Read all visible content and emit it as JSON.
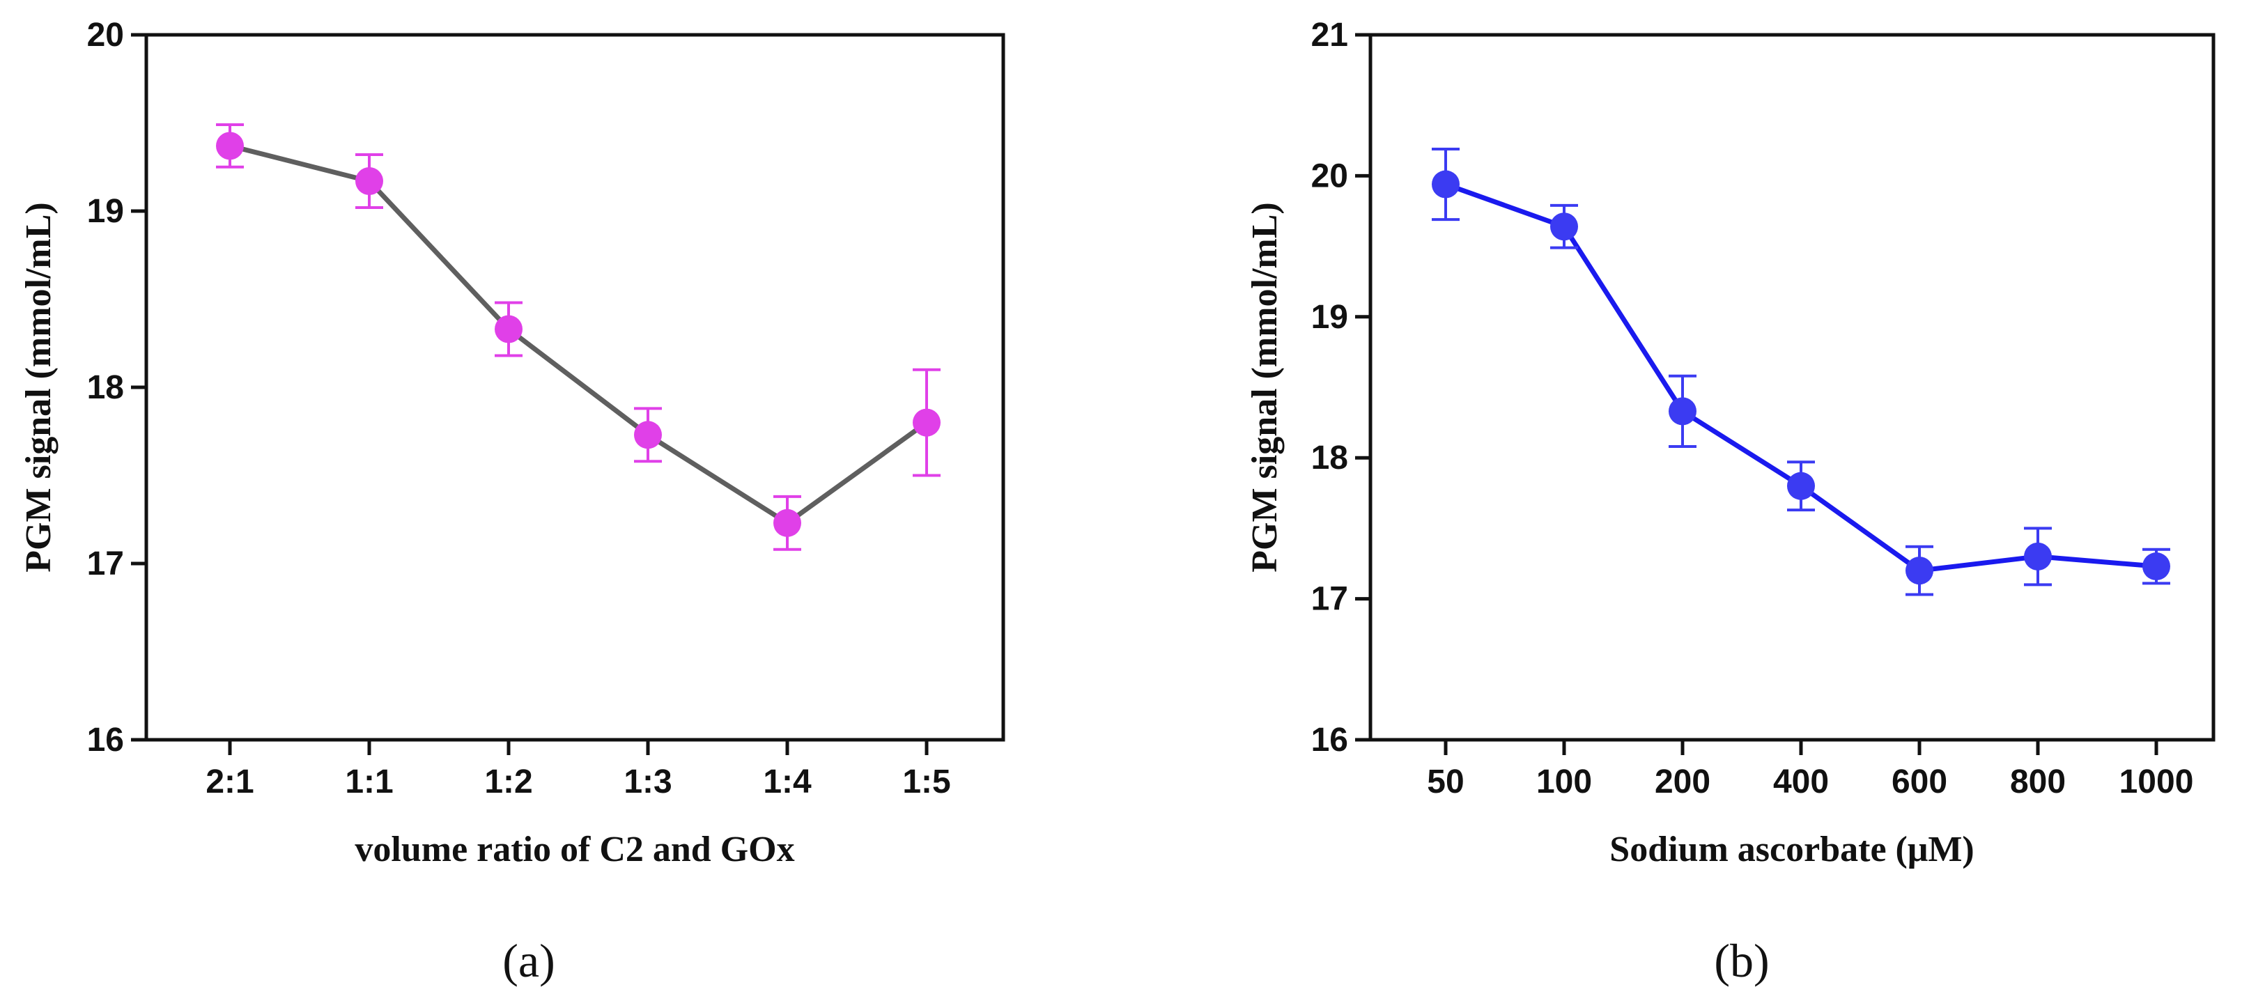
{
  "chart_data": [
    {
      "type": "line",
      "panel_label": "(a)",
      "categories": [
        "2:1",
        "1:1",
        "1:2",
        "1:3",
        "1:4",
        "1:5"
      ],
      "values": [
        19.37,
        19.17,
        18.33,
        17.73,
        17.23,
        17.8
      ],
      "errors": [
        0.12,
        0.15,
        0.15,
        0.15,
        0.15,
        0.3
      ],
      "xlabel": "volume ratio of C2 and GOx",
      "ylabel": "PGM signal (mmol/mL)",
      "ylim": [
        16,
        20
      ],
      "yticks": [
        "16",
        "17",
        "18",
        "19",
        "20"
      ],
      "line_color": "#5f5f5f",
      "marker_color": "#e040e8",
      "grid": false
    },
    {
      "type": "line",
      "panel_label": "(b)",
      "categories": [
        "50",
        "100",
        "200",
        "400",
        "600",
        "800",
        "1000"
      ],
      "values": [
        19.94,
        19.64,
        18.33,
        17.8,
        17.2,
        17.3,
        17.23
      ],
      "errors": [
        0.25,
        0.15,
        0.25,
        0.17,
        0.17,
        0.2,
        0.12
      ],
      "xlabel": "Sodium ascorbate (μM)",
      "ylabel": "PGM signal (mmol/mL)",
      "ylim": [
        16,
        21
      ],
      "yticks": [
        "16",
        "17",
        "18",
        "19",
        "20",
        "21"
      ],
      "line_color": "#1a1aee",
      "marker_color": "#3b3bf2",
      "grid": false
    }
  ]
}
